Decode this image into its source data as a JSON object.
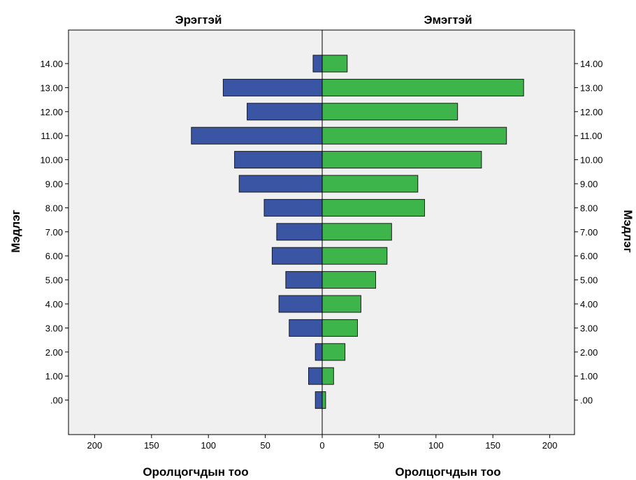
{
  "chart_data": {
    "type": "bar",
    "orientation": "horizontal",
    "layout": "population-pyramid",
    "left_panel_title": "Эрэгтэй",
    "right_panel_title": "Эмэгтэй",
    "ylabel_left": "Мэдлэг",
    "ylabel_right": "Мэдлэг",
    "xlabel_left": "Оролцогчдын тоо",
    "xlabel_right": "Оролцогчдын тоо",
    "xlim": [
      0,
      220
    ],
    "x_ticks": [
      0,
      50,
      100,
      150,
      200
    ],
    "x_tick_labels": [
      "0",
      "50",
      "100",
      "150",
      "200"
    ],
    "categories": [
      ".00",
      "1.00",
      "2.00",
      "3.00",
      "4.00",
      "5.00",
      "6.00",
      "7.00",
      "8.00",
      "9.00",
      "10.00",
      "11.00",
      "12.00",
      "13.00",
      "14.00"
    ],
    "series": [
      {
        "name": "Эрэгтэй",
        "side": "left",
        "color": "#3a55a4",
        "values": [
          6,
          12,
          6,
          29,
          38,
          32,
          44,
          40,
          51,
          73,
          77,
          115,
          66,
          87,
          8
        ]
      },
      {
        "name": "Эмэгтэй",
        "side": "right",
        "color": "#3db54a",
        "values": [
          3,
          10,
          20,
          31,
          34,
          47,
          57,
          61,
          90,
          84,
          140,
          162,
          119,
          177,
          22
        ]
      }
    ],
    "background": "#f0f0f0",
    "grid": false
  }
}
